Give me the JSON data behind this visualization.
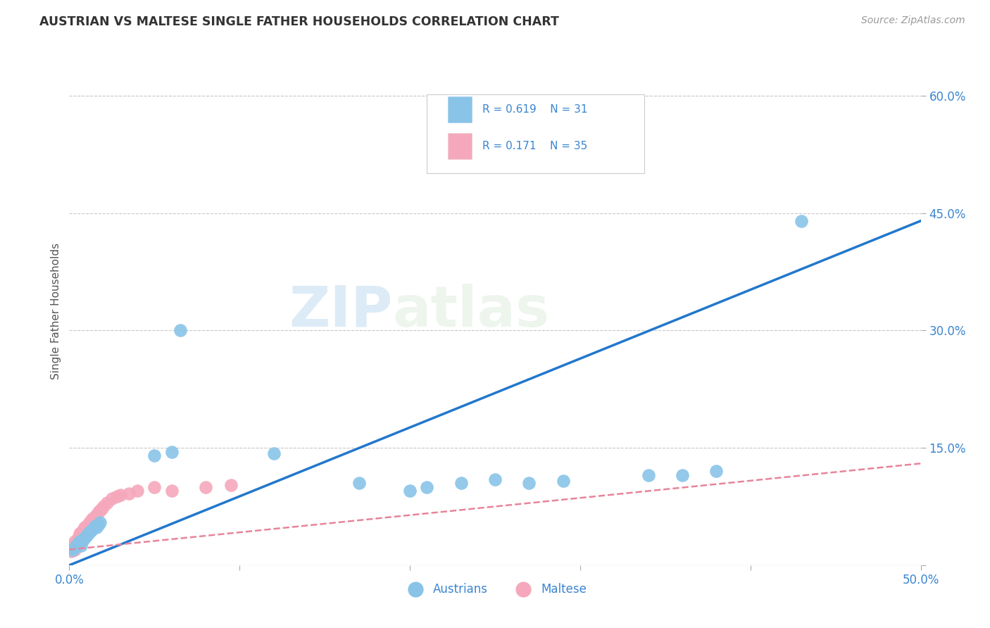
{
  "title": "AUSTRIAN VS MALTESE SINGLE FATHER HOUSEHOLDS CORRELATION CHART",
  "source": "Source: ZipAtlas.com",
  "ylabel": "Single Father Households",
  "xlim": [
    0.0,
    0.5
  ],
  "ylim": [
    0.0,
    0.65
  ],
  "xticks": [
    0.0,
    0.1,
    0.2,
    0.3,
    0.4,
    0.5
  ],
  "yticks_right": [
    0.0,
    0.15,
    0.3,
    0.45,
    0.6
  ],
  "ytick_labels_right": [
    "",
    "15.0%",
    "30.0%",
    "45.0%",
    "60.0%"
  ],
  "xtick_labels": [
    "0.0%",
    "",
    "",
    "",
    "",
    "50.0%"
  ],
  "grid_color": "#c8c8c8",
  "background_color": "#ffffff",
  "austrians_color": "#89c4e8",
  "maltese_color": "#f5a8bc",
  "austrians_line_color": "#2277cc",
  "maltese_line_color": "#e8849a",
  "watermark_zip": "ZIP",
  "watermark_atlas": "atlas",
  "legend_R1": "0.619",
  "legend_N1": "31",
  "legend_R2": "0.171",
  "legend_N2": "35",
  "austrians_x": [
    0.002,
    0.003,
    0.004,
    0.005,
    0.006,
    0.007,
    0.008,
    0.009,
    0.01,
    0.011,
    0.012,
    0.013,
    0.015,
    0.016,
    0.017,
    0.018,
    0.05,
    0.06,
    0.065,
    0.12,
    0.17,
    0.2,
    0.21,
    0.23,
    0.25,
    0.27,
    0.29,
    0.34,
    0.36,
    0.38,
    0.43
  ],
  "austrians_y": [
    0.02,
    0.022,
    0.025,
    0.028,
    0.03,
    0.025,
    0.032,
    0.035,
    0.038,
    0.04,
    0.042,
    0.045,
    0.05,
    0.048,
    0.052,
    0.055,
    0.14,
    0.145,
    0.3,
    0.143,
    0.105,
    0.095,
    0.1,
    0.105,
    0.11,
    0.105,
    0.108,
    0.115,
    0.115,
    0.12,
    0.44
  ],
  "maltese_x": [
    0.001,
    0.002,
    0.002,
    0.003,
    0.003,
    0.004,
    0.005,
    0.005,
    0.006,
    0.006,
    0.007,
    0.007,
    0.008,
    0.009,
    0.01,
    0.011,
    0.012,
    0.013,
    0.014,
    0.015,
    0.016,
    0.017,
    0.018,
    0.019,
    0.02,
    0.022,
    0.025,
    0.028,
    0.03,
    0.035,
    0.04,
    0.05,
    0.06,
    0.08,
    0.095
  ],
  "maltese_y": [
    0.018,
    0.022,
    0.025,
    0.02,
    0.03,
    0.028,
    0.032,
    0.035,
    0.038,
    0.04,
    0.035,
    0.042,
    0.045,
    0.048,
    0.05,
    0.052,
    0.055,
    0.058,
    0.06,
    0.062,
    0.065,
    0.068,
    0.07,
    0.072,
    0.075,
    0.08,
    0.085,
    0.088,
    0.09,
    0.092,
    0.095,
    0.1,
    0.095,
    0.1,
    0.102
  ]
}
